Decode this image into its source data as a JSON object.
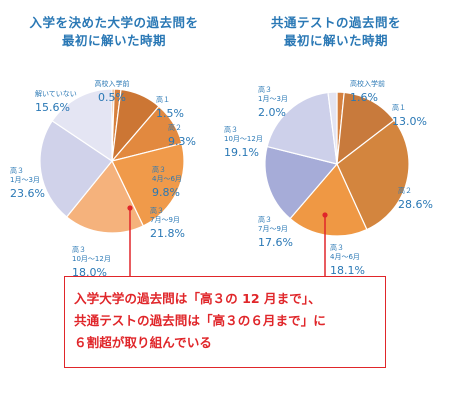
{
  "chart_data": [
    {
      "type": "pie",
      "title_lines": [
        "入学を決めた大学の過去問を",
        "最初に解いた時期"
      ],
      "slices": [
        {
          "label": "高校入学前",
          "value": 0.5,
          "value_label": "0.5%",
          "color": "#dc8d4a"
        },
        {
          "label": "高１",
          "value": 1.5,
          "value_label": "1.5%",
          "color": "#d7803d"
        },
        {
          "label": "高２",
          "value": 9.3,
          "value_label": "9.3%",
          "color": "#cc7634"
        },
        {
          "label": "高３\n4月～6月",
          "value": 9.8,
          "value_label": "9.8%",
          "color": "#e2893f"
        },
        {
          "label": "高３\n7月～9月",
          "value": 21.8,
          "value_label": "21.8%",
          "color": "#f09a4a"
        },
        {
          "label": "高３\n10月～12月",
          "value": 18.0,
          "value_label": "18.0%",
          "color": "#f5b27c"
        },
        {
          "label": "高３\n1月～3月",
          "value": 23.6,
          "value_label": "23.6%",
          "color": "#d0d2ea"
        },
        {
          "label": "解いていない",
          "value": 15.6,
          "value_label": "15.6%",
          "color": "#e4e5f3"
        }
      ]
    },
    {
      "type": "pie",
      "title_lines": [
        "共通テストの過去問を",
        "最初に解いた時期"
      ],
      "slices": [
        {
          "label": "高校入学前",
          "value": 1.6,
          "value_label": "1.6%",
          "color": "#d5803f"
        },
        {
          "label": "高１",
          "value": 13.0,
          "value_label": "13.0%",
          "color": "#c87a3c"
        },
        {
          "label": "高２",
          "value": 28.6,
          "value_label": "28.6%",
          "color": "#d3853e"
        },
        {
          "label": "高３\n4月～6月",
          "value": 18.1,
          "value_label": "18.1%",
          "color": "#ef9844"
        },
        {
          "label": "高３\n7月～9月",
          "value": 17.6,
          "value_label": "17.6%",
          "color": "#a6acd8"
        },
        {
          "label": "高３\n10月～12月",
          "value": 19.1,
          "value_label": "19.1%",
          "color": "#cdd0ea"
        },
        {
          "label": "高３\n1月～3月",
          "value": 2.0,
          "value_label": "2.0%",
          "color": "#e3e4f2"
        }
      ]
    }
  ],
  "callout": {
    "lines": [
      "入学大学の過去問は「高３の 12 月まで」、",
      "共通テストの過去問は「高３の６月まで」に",
      "６割超が取り組んでいる"
    ],
    "border_color": "#e0262a"
  }
}
